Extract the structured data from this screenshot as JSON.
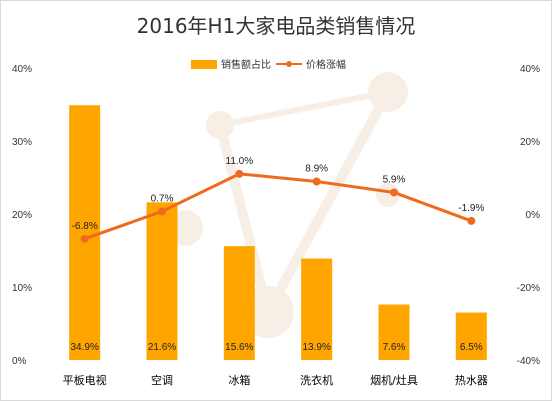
{
  "chart_data": {
    "type": "bar",
    "title": "2016年H1大家电品类销售情况",
    "categories": [
      "平板电视",
      "空调",
      "冰箱",
      "洗衣机",
      "烟机/灶具",
      "热水器"
    ],
    "series": [
      {
        "name": "销售额占比",
        "axis": "left",
        "kind": "bar",
        "values": [
          34.9,
          21.6,
          15.6,
          13.9,
          7.6,
          6.5
        ],
        "labels": [
          "34.9%",
          "21.6%",
          "15.6%",
          "13.9%",
          "7.6%",
          "6.5%"
        ],
        "color": "#FFA500"
      },
      {
        "name": "价格涨幅",
        "axis": "right",
        "kind": "line",
        "values": [
          -6.8,
          0.7,
          11.0,
          8.9,
          5.9,
          -1.9
        ],
        "labels": [
          "-6.8%",
          "0.7%",
          "11.0%",
          "8.9%",
          "5.9%",
          "-1.9%"
        ],
        "color": "#F06A1E"
      }
    ],
    "y_left": {
      "lim": [
        0,
        40
      ],
      "ticks": [
        0,
        10,
        20,
        30,
        40
      ],
      "tick_labels": [
        "0%",
        "10%",
        "20%",
        "30%",
        "40%"
      ]
    },
    "y_right": {
      "lim": [
        -40,
        40
      ],
      "ticks": [
        -40,
        -20,
        0,
        20,
        40
      ],
      "tick_labels": [
        "-40%",
        "-20%",
        "0%",
        "20%",
        "40%"
      ]
    },
    "legend": "top-center",
    "grid": false
  }
}
